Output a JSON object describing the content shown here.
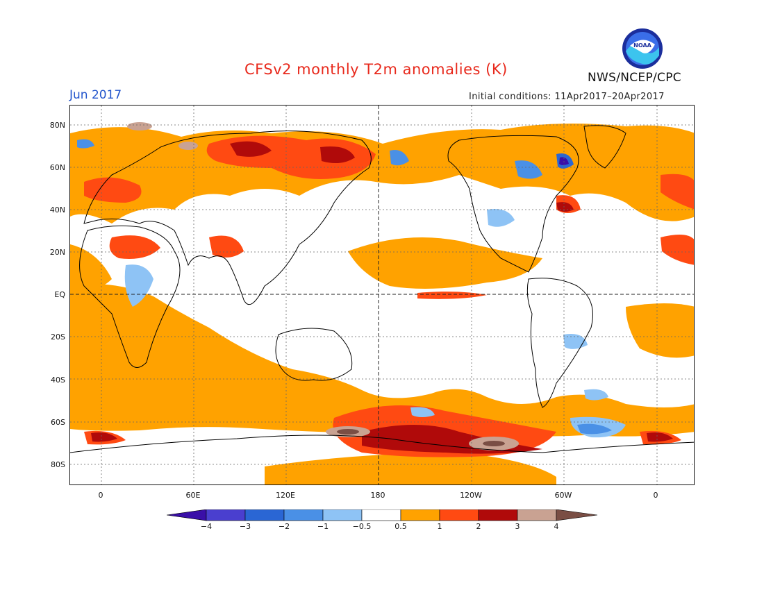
{
  "header": {
    "title": "CFSv2 monthly T2m anomalies (K)",
    "month": "Jun 2017",
    "initial_conditions": "Initial conditions: 11Apr2017–20Apr2017",
    "agency": "NWS/NCEP/CPC",
    "logo_text": "NOAA"
  },
  "axes": {
    "lat_labels": [
      "80N",
      "60N",
      "40N",
      "20N",
      "EQ",
      "20S",
      "40S",
      "60S",
      "80S"
    ],
    "lon_labels": [
      "0",
      "60E",
      "120E",
      "180",
      "120W",
      "60W",
      "0"
    ]
  },
  "colorbar": {
    "tick_labels": [
      "−4",
      "−3",
      "−2",
      "−1",
      "−0.5",
      "0.5",
      "1",
      "2",
      "3",
      "4"
    ],
    "colors": [
      "#3a0fa8",
      "#4a3fcf",
      "#2a66d4",
      "#4a90e6",
      "#8ec3f5",
      "#ffffff",
      "#ffa200",
      "#ff4a12",
      "#b00a0a",
      "#c9a292",
      "#7a4e44"
    ]
  },
  "colors": {
    "title": "#e8291c",
    "month": "#2255cc",
    "warm_light": "#ffa200",
    "warm_mid": "#ff4a12",
    "warm_dark": "#b00a0a",
    "warm_extreme": "#c9a292",
    "cold_light": "#8ec3f5",
    "cold_mid": "#4a90e6",
    "cold_dark": "#3a0fa8"
  }
}
